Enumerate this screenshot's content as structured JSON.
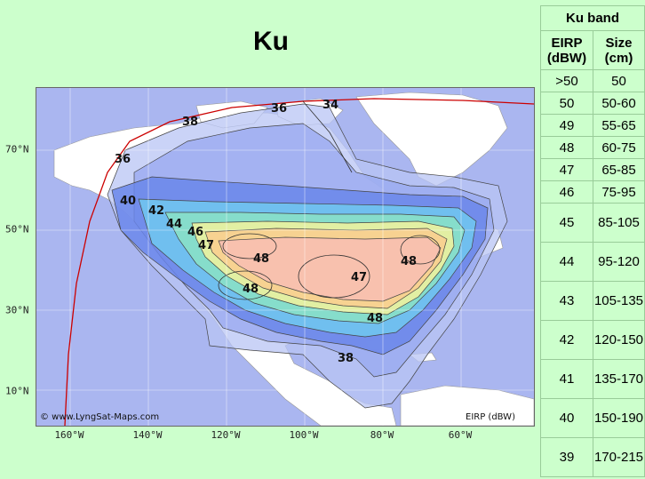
{
  "title": "Ku",
  "map": {
    "copyright": "© www.LyngSat-Maps.com",
    "unit_label": "EIRP (dBW)",
    "lon_labels": [
      "160°W",
      "140°W",
      "120°W",
      "100°W",
      "80°W",
      "60°W"
    ],
    "lat_labels": [
      "70°N",
      "50°N",
      "30°N",
      "10°N"
    ],
    "contour_labels": [
      "36",
      "38",
      "36",
      "34",
      "40",
      "42",
      "44",
      "46",
      "47",
      "48",
      "48",
      "47",
      "48",
      "48",
      "38"
    ],
    "colors": {
      "ocean": "#aab6f0",
      "land": "#ffffff",
      "beam_edge": "#cc0000",
      "c36": "#b8c4f4",
      "c38": "#9aaaf0",
      "c40": "#6a86ea",
      "c42": "#70c4f0",
      "c44": "#88e0c8",
      "c46": "#e8f0a0",
      "c47": "#f8d090",
      "c48": "#f8c0b0"
    }
  },
  "table": {
    "title": "Ku band",
    "col1": "EIRP (dBW)",
    "col2": "Size (cm)",
    "rows": [
      {
        "eirp": ">50",
        "size": "50"
      },
      {
        "eirp": "50",
        "size": "50-60"
      },
      {
        "eirp": "49",
        "size": "55-65"
      },
      {
        "eirp": "48",
        "size": "60-75"
      },
      {
        "eirp": "47",
        "size": "65-85"
      },
      {
        "eirp": "46",
        "size": "75-95"
      },
      {
        "eirp": "45",
        "size": "85-105"
      },
      {
        "eirp": "44",
        "size": "95-120"
      },
      {
        "eirp": "43",
        "size": "105-135"
      },
      {
        "eirp": "42",
        "size": "120-150"
      },
      {
        "eirp": "41",
        "size": "135-170"
      },
      {
        "eirp": "40",
        "size": "150-190"
      },
      {
        "eirp": "39",
        "size": "170-215"
      }
    ]
  }
}
